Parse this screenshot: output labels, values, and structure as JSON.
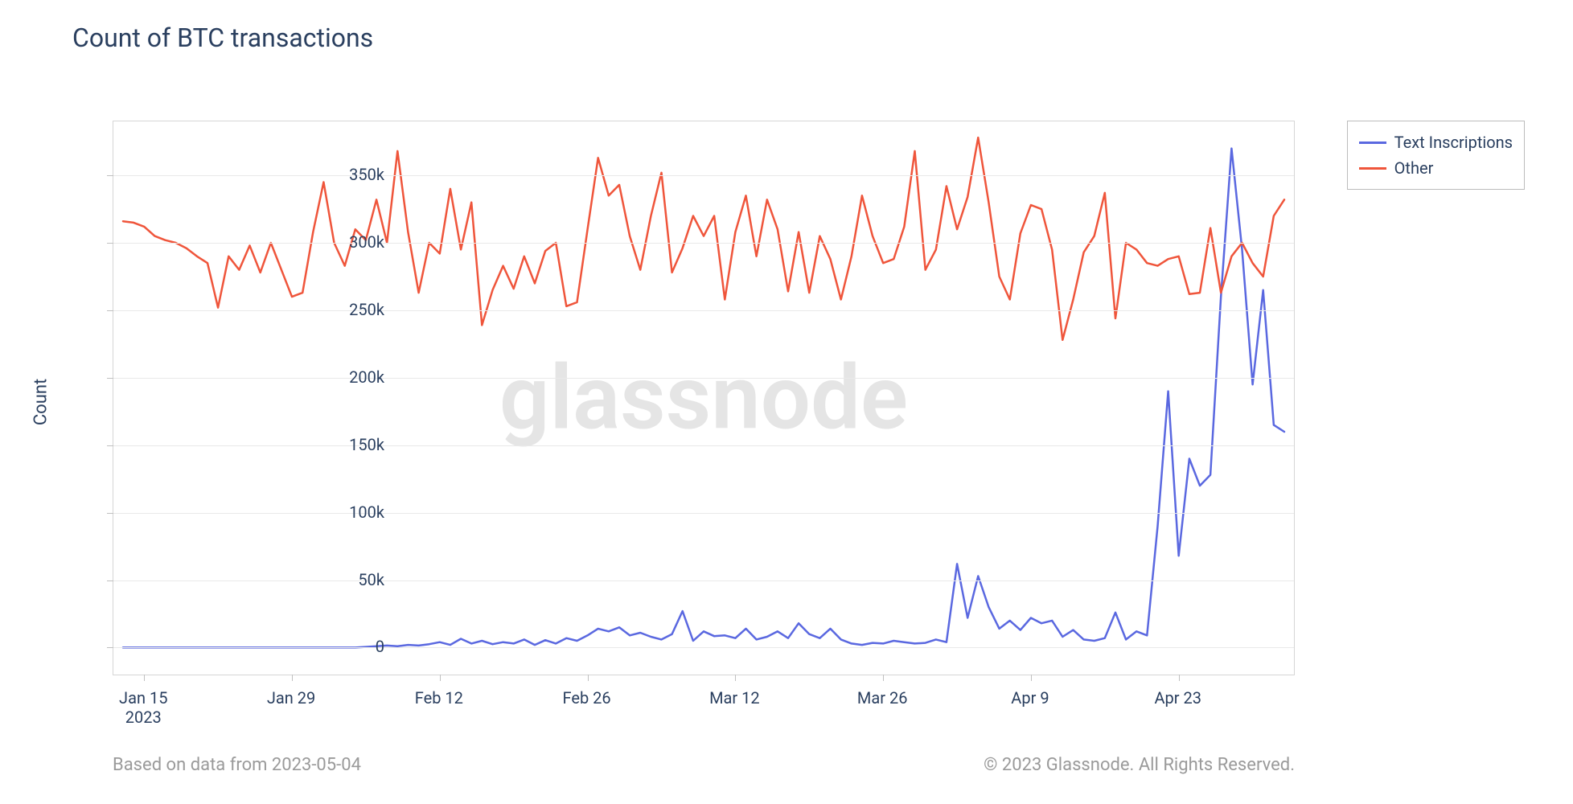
{
  "chart": {
    "type": "line",
    "title": "Count of BTC transactions",
    "ylabel": "Count",
    "watermark": "glassnode",
    "background_color": "#ffffff",
    "plot_border_color": "#d6d6d6",
    "grid_color": "#e9e9e9",
    "text_color": "#2a3f5f",
    "title_fontsize": 32,
    "label_fontsize": 22,
    "tick_fontsize": 20,
    "ylim": [
      -20000,
      390000
    ],
    "yticks": [
      0,
      50000,
      100000,
      150000,
      200000,
      250000,
      300000,
      350000
    ],
    "ytick_labels": [
      "0",
      "50k",
      "100k",
      "150k",
      "200k",
      "250k",
      "300k",
      "350k"
    ],
    "x_start": "2023-01-13",
    "x_end": "2023-05-04",
    "xticks_idx": [
      2,
      16,
      30,
      44,
      58,
      72,
      86,
      100
    ],
    "xtick_labels": [
      "Jan 15",
      "Jan 29",
      "Feb 12",
      "Feb 26",
      "Mar 12",
      "Mar 26",
      "Apr 9",
      "Apr 23"
    ],
    "xtick_year": "2023",
    "line_width": 2.5,
    "series": [
      {
        "name": "Text Inscriptions",
        "color": "#5a68e0",
        "values": [
          0,
          0,
          0,
          0,
          0,
          0,
          0,
          0,
          0,
          0,
          0,
          0,
          0,
          0,
          0,
          0,
          0,
          0,
          0,
          0,
          0,
          0,
          0,
          500,
          1000,
          1500,
          1000,
          2000,
          1500,
          2500,
          4000,
          2000,
          6500,
          3000,
          5000,
          2500,
          4000,
          3000,
          6000,
          2000,
          5500,
          3000,
          7000,
          5000,
          9000,
          14000,
          12000,
          15000,
          9000,
          11000,
          8000,
          6000,
          10000,
          27000,
          5000,
          12000,
          8500,
          9000,
          7000,
          14000,
          6000,
          8000,
          12000,
          7000,
          18000,
          10000,
          7000,
          14000,
          6000,
          3000,
          2000,
          3500,
          3000,
          5000,
          4000,
          3000,
          3500,
          6000,
          4000,
          62000,
          22000,
          53000,
          30000,
          14000,
          20000,
          13000,
          22000,
          18000,
          20000,
          8000,
          13000,
          6000,
          5000,
          7000,
          26000,
          6000,
          12000,
          9000,
          90000,
          190000,
          68000,
          140000,
          120000,
          128000,
          260000,
          370000,
          295000,
          195000,
          265000,
          165000,
          160000
        ]
      },
      {
        "name": "Other",
        "color": "#ef553b",
        "values": [
          316000,
          315000,
          312000,
          305000,
          302000,
          300000,
          296000,
          290000,
          285000,
          252000,
          290000,
          280000,
          298000,
          278000,
          300000,
          280000,
          260000,
          263000,
          308000,
          345000,
          300000,
          283000,
          310000,
          302000,
          332000,
          300000,
          368000,
          308000,
          263000,
          300000,
          292000,
          340000,
          295000,
          330000,
          239000,
          265000,
          283000,
          266000,
          290000,
          270000,
          294000,
          300000,
          253000,
          256000,
          310000,
          363000,
          335000,
          343000,
          305000,
          280000,
          320000,
          352000,
          278000,
          296000,
          320000,
          305000,
          320000,
          258000,
          308000,
          335000,
          290000,
          332000,
          310000,
          264000,
          308000,
          263000,
          305000,
          288000,
          258000,
          290000,
          335000,
          305000,
          285000,
          288000,
          312000,
          368000,
          280000,
          295000,
          342000,
          310000,
          334000,
          378000,
          330000,
          275000,
          258000,
          307000,
          328000,
          325000,
          295000,
          228000,
          258000,
          293000,
          305000,
          337000,
          244000,
          300000,
          295000,
          285000,
          283000,
          288000,
          290000,
          262000,
          263000,
          311000,
          263000,
          290000,
          300000,
          285000,
          275000,
          320000,
          332000
        ]
      }
    ],
    "legend": {
      "position": "right-top",
      "border_color": "#bcbcbc",
      "background": "#ffffff",
      "items": [
        {
          "label": "Text Inscriptions",
          "color": "#5a68e0"
        },
        {
          "label": "Other",
          "color": "#ef553b"
        }
      ]
    },
    "footer_left": "Based on data from 2023-05-04",
    "footer_right": "© 2023 Glassnode. All Rights Reserved.",
    "footer_color": "#9a9a9a"
  }
}
